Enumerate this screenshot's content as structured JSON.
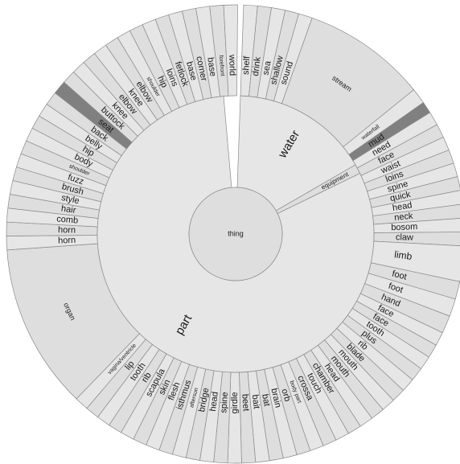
{
  "chart": {
    "type": "sunburst",
    "colors": {
      "fill": "#e6e6e6",
      "fill_alt": "#dedede",
      "stroke": "#8a8a8a",
      "highlight": "#808080",
      "label": "#1a1a1a"
    }
  },
  "root": {
    "label": "thing"
  },
  "level1": [
    {
      "label": "water",
      "start": 2,
      "end": 60
    },
    {
      "label": "equipment",
      "start": 60,
      "end": 64
    },
    {
      "label": "part",
      "start": 64,
      "end": 355
    }
  ],
  "level2": [
    {
      "label": "shelf",
      "start": 2,
      "end": 5.5
    },
    {
      "label": "drink",
      "start": 5.5,
      "end": 9
    },
    {
      "label": "sea",
      "start": 9,
      "end": 12.5
    },
    {
      "label": "shallow",
      "start": 12.5,
      "end": 16
    },
    {
      "label": "sound",
      "start": 16,
      "end": 19.5
    },
    {
      "label": "stream",
      "start": 19.5,
      "end": 51
    },
    {
      "label": "waterfall",
      "start": 51,
      "end": 55
    },
    {
      "label": "mud",
      "start": 55,
      "end": 58,
      "highlight": true
    },
    {
      "label": "need",
      "start": 58,
      "end": 61.5
    },
    {
      "label": "face",
      "start": 61.5,
      "end": 65
    },
    {
      "label": "waist",
      "start": 65,
      "end": 68.5
    },
    {
      "label": "loins",
      "start": 68.5,
      "end": 72
    },
    {
      "label": "spine",
      "start": 72,
      "end": 75.5
    },
    {
      "label": "quick",
      "start": 75.5,
      "end": 79
    },
    {
      "label": "head",
      "start": 79,
      "end": 82.5
    },
    {
      "label": "neck",
      "start": 82.5,
      "end": 86
    },
    {
      "label": "bosom",
      "start": 86,
      "end": 89.5
    },
    {
      "label": "claw",
      "start": 89.5,
      "end": 93
    },
    {
      "label": "limb",
      "start": 93,
      "end": 102
    },
    {
      "label": "foot",
      "start": 102,
      "end": 106.5
    },
    {
      "label": "foot",
      "start": 106.5,
      "end": 111
    },
    {
      "label": "hand",
      "start": 111,
      "end": 115.5
    },
    {
      "label": "face",
      "start": 115.5,
      "end": 119
    },
    {
      "label": "face",
      "start": 119,
      "end": 122.5
    },
    {
      "label": "tooth",
      "start": 122.5,
      "end": 126
    },
    {
      "label": "plus",
      "start": 126,
      "end": 129.5
    },
    {
      "label": "rib",
      "start": 129.5,
      "end": 133
    },
    {
      "label": "blade",
      "start": 133,
      "end": 136.5
    },
    {
      "label": "mouth",
      "start": 136.5,
      "end": 140
    },
    {
      "label": "mouth",
      "start": 140,
      "end": 143.5
    },
    {
      "label": "head",
      "start": 143.5,
      "end": 147
    },
    {
      "label": "chamber",
      "start": 147,
      "end": 150.5
    },
    {
      "label": "touch",
      "start": 150.5,
      "end": 154
    },
    {
      "label": "crossa",
      "start": 154,
      "end": 157.5
    },
    {
      "label": "body part",
      "start": 157.5,
      "end": 161
    },
    {
      "label": "orb",
      "start": 161,
      "end": 164.5
    },
    {
      "label": "brain",
      "start": 164.5,
      "end": 168
    },
    {
      "label": "bat",
      "start": 168,
      "end": 171.5
    },
    {
      "label": "bait",
      "start": 171.5,
      "end": 175
    },
    {
      "label": "beet",
      "start": 175,
      "end": 178.5
    },
    {
      "label": "girdle",
      "start": 178.5,
      "end": 182
    },
    {
      "label": "spine",
      "start": 182,
      "end": 185.5
    },
    {
      "label": "head",
      "start": 185.5,
      "end": 189
    },
    {
      "label": "bridge",
      "start": 189,
      "end": 192.5
    },
    {
      "label": "aftersun",
      "start": 192.5,
      "end": 196
    },
    {
      "label": "isthmus",
      "start": 196,
      "end": 199.5
    },
    {
      "label": "flesh",
      "start": 199.5,
      "end": 203
    },
    {
      "label": "skin",
      "start": 203,
      "end": 206.5
    },
    {
      "label": "scapula",
      "start": 206.5,
      "end": 210
    },
    {
      "label": "rib",
      "start": 210,
      "end": 213.5
    },
    {
      "label": "tooth",
      "start": 213.5,
      "end": 217
    },
    {
      "label": "lip",
      "start": 217,
      "end": 220.5
    },
    {
      "label": "vagina/ventricle",
      "start": 220.5,
      "end": 224
    },
    {
      "label": "organ",
      "start": 224,
      "end": 266
    },
    {
      "label": "horn",
      "start": 266,
      "end": 269.5
    },
    {
      "label": "horn",
      "start": 269.5,
      "end": 273
    },
    {
      "label": "comb",
      "start": 273,
      "end": 276.5
    },
    {
      "label": "hair",
      "start": 276.5,
      "end": 280
    },
    {
      "label": "style",
      "start": 280,
      "end": 283.5
    },
    {
      "label": "brush",
      "start": 283.5,
      "end": 287
    },
    {
      "label": "fuzz",
      "start": 287,
      "end": 290.5
    },
    {
      "label": "shoulder",
      "start": 290.5,
      "end": 294
    },
    {
      "label": "body",
      "start": 294,
      "end": 297.5
    },
    {
      "label": "hip",
      "start": 297.5,
      "end": 301
    },
    {
      "label": "belly",
      "start": 301,
      "end": 304.5
    },
    {
      "label": "back",
      "start": 304.5,
      "end": 308
    },
    {
      "label": "seat",
      "start": 308,
      "end": 311.5,
      "highlight": true
    },
    {
      "label": "buttock",
      "start": 311.5,
      "end": 315
    },
    {
      "label": "knee",
      "start": 315,
      "end": 318.5
    },
    {
      "label": "elbow",
      "start": 318.5,
      "end": 322
    },
    {
      "label": "knee",
      "start": 322,
      "end": 325.5
    },
    {
      "label": "elbow",
      "start": 325.5,
      "end": 329
    },
    {
      "label": "shoulder",
      "start": 329,
      "end": 332.5
    },
    {
      "label": "hip",
      "start": 332.5,
      "end": 336
    },
    {
      "label": "loins",
      "start": 336,
      "end": 339.5
    },
    {
      "label": "fetlock",
      "start": 339.5,
      "end": 343
    },
    {
      "label": "base",
      "start": 343,
      "end": 346.5
    },
    {
      "label": "corner",
      "start": 346.5,
      "end": 350
    },
    {
      "label": "base",
      "start": 350,
      "end": 353.5
    },
    {
      "label": "forefront",
      "start": 353.5,
      "end": 357
    },
    {
      "label": "world",
      "start": 357,
      "end": 360.5
    }
  ]
}
